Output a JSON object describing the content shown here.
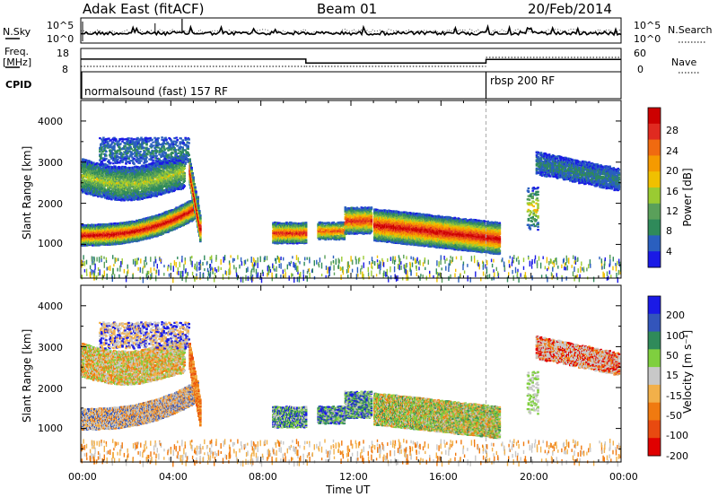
{
  "header": {
    "station": "Adak East (fitACF)",
    "beam": "Beam 01",
    "date": "20/Feb/2014"
  },
  "left_labels": {
    "nsky": "N.Sky",
    "freq": "Freq.",
    "freq_unit": "[MHz]",
    "cpid": "CPID"
  },
  "right_labels": {
    "nsearch": "N.Search",
    "nave": "Nave"
  },
  "cpid_blocks": [
    {
      "label": "normalsound (fast) 157 RF"
    },
    {
      "label": "rbsp 200 RF"
    }
  ],
  "time_axis": {
    "label": "Time UT",
    "ticks": [
      "00:00",
      "04:00",
      "08:00",
      "12:00",
      "16:00",
      "20:00",
      "00:00"
    ]
  },
  "colors": {
    "power_scale": [
      "#1a1ae6",
      "#2a5fbf",
      "#2f8a5a",
      "#5aa05a",
      "#9acb32",
      "#f0c000",
      "#f59a00",
      "#f06a10",
      "#e02a20",
      "#cc0000"
    ],
    "velocity_scale": [
      "#1a1ae6",
      "#3355bb",
      "#2f8a5a",
      "#7fcf3f",
      "#c8c8c8",
      "#f2b04a",
      "#f07a10",
      "#e84a10",
      "#e00000"
    ]
  },
  "chart_data": [
    {
      "type": "line",
      "name": "noise",
      "ylabels_left": [
        "10^5",
        "10^0"
      ],
      "ylabels_right": [
        "10^5",
        "10^0"
      ]
    },
    {
      "type": "line",
      "name": "frequency",
      "ylabels_left": [
        "18",
        "8"
      ],
      "ylabels_right": [
        "60",
        "0"
      ],
      "series": [
        {
          "x": [
            "00:00",
            "10:00",
            "10:00",
            "18:00",
            "18:00",
            "24:00"
          ],
          "y": [
            12.5,
            12.5,
            10.5,
            10.5,
            12.3,
            12.3
          ]
        }
      ]
    },
    {
      "type": "heatmap",
      "name": "power",
      "ylabel": "Slant Range [km]",
      "yticks": [
        "1000",
        "2000",
        "3000",
        "4000"
      ],
      "ylim": [
        180,
        4500
      ],
      "colorbar_label": "Power [dB]",
      "colorbar_ticks": [
        "4",
        "8",
        "12",
        "16",
        "20",
        "24",
        "28"
      ],
      "clim": [
        0,
        30
      ]
    },
    {
      "type": "heatmap",
      "name": "velocity",
      "ylabel": "Slant Range [km]",
      "yticks": [
        "1000",
        "2000",
        "3000",
        "4000"
      ],
      "ylim": [
        180,
        4500
      ],
      "colorbar_label": "Velocity [m s⁻¹]",
      "colorbar_ticks": [
        "200",
        "100",
        "50",
        "15",
        "-15",
        "-50",
        "-100",
        "-200"
      ],
      "clim": [
        -250,
        250
      ]
    }
  ]
}
